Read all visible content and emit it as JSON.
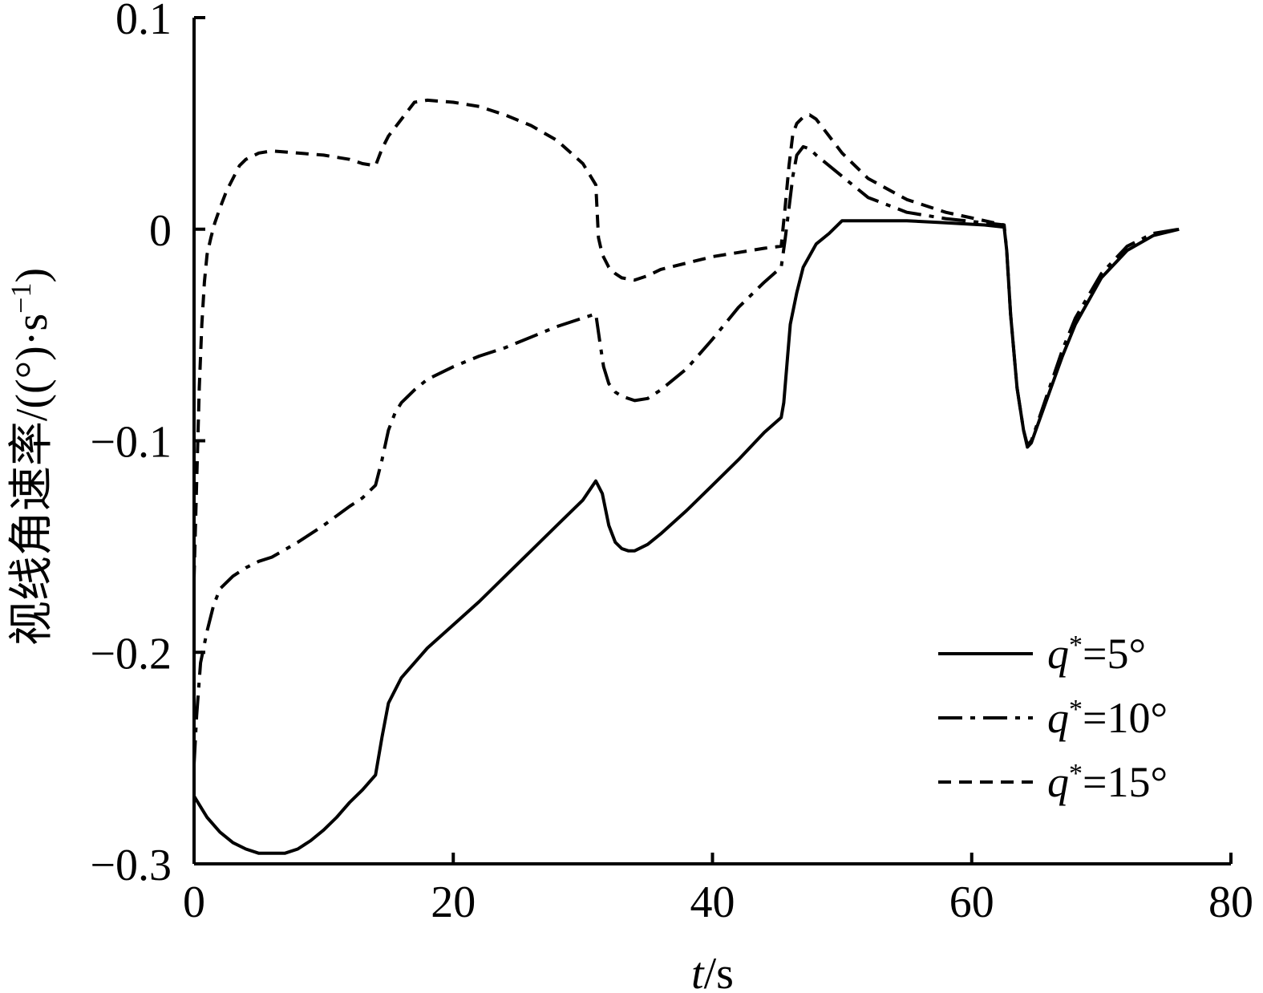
{
  "chart_data": {
    "type": "line",
    "title": "",
    "xlabel": {
      "var": "t",
      "unit": "/s"
    },
    "ylabel": {
      "text": "视线角速率/((°)·s",
      "sup": "−1",
      "close": ")"
    },
    "xlim": [
      0,
      80
    ],
    "ylim": [
      -0.3,
      0.1
    ],
    "xticks": [
      0,
      20,
      40,
      60,
      80
    ],
    "xtick_labels": [
      "0",
      "20",
      "40",
      "60",
      "80"
    ],
    "yticks": [
      -0.3,
      -0.2,
      -0.1,
      0,
      0.1
    ],
    "ytick_labels": [
      "−0.3",
      "−0.2",
      "−0.1",
      "0",
      "0.1"
    ],
    "grid": false,
    "legend_position": "bottom-right",
    "series": [
      {
        "var": "q",
        "sup": "*",
        "value": "=5°",
        "dash": "solid",
        "x": [
          0,
          0.5,
          1,
          2,
          3,
          4,
          5,
          6,
          7,
          8,
          9,
          10,
          11,
          12,
          13,
          14,
          14.5,
          15,
          15.5,
          16,
          17,
          18,
          20,
          22,
          24,
          26,
          28,
          30,
          31,
          31.5,
          32,
          32.5,
          33,
          33.5,
          34,
          35,
          36,
          38,
          40,
          42,
          44,
          45.3,
          45.5,
          45.8,
          46,
          46.5,
          47,
          48,
          49,
          50,
          52,
          55,
          58,
          61,
          62.5,
          62.7,
          63,
          63.5,
          64,
          64.3,
          64.6,
          65,
          66,
          67,
          68,
          70,
          72,
          74,
          76
        ],
        "y": [
          -0.268,
          -0.273,
          -0.278,
          -0.285,
          -0.29,
          -0.293,
          -0.295,
          -0.295,
          -0.295,
          -0.293,
          -0.289,
          -0.284,
          -0.278,
          -0.271,
          -0.265,
          -0.258,
          -0.24,
          -0.224,
          -0.218,
          -0.212,
          -0.205,
          -0.198,
          -0.187,
          -0.176,
          -0.164,
          -0.152,
          -0.14,
          -0.128,
          -0.119,
          -0.125,
          -0.14,
          -0.148,
          -0.151,
          -0.152,
          -0.152,
          -0.149,
          -0.144,
          -0.133,
          -0.121,
          -0.109,
          -0.096,
          -0.089,
          -0.082,
          -0.06,
          -0.045,
          -0.03,
          -0.018,
          -0.007,
          -0.002,
          0.004,
          0.004,
          0.004,
          0.003,
          0.002,
          0.001,
          -0.01,
          -0.04,
          -0.075,
          -0.095,
          -0.103,
          -0.101,
          -0.094,
          -0.077,
          -0.06,
          -0.045,
          -0.023,
          -0.01,
          -0.003,
          0
        ]
      },
      {
        "var": "q",
        "sup": "*",
        "value": "=10°",
        "dash": "dashdot",
        "x": [
          0,
          0.2,
          0.5,
          1,
          1.5,
          2,
          3,
          4,
          5,
          6,
          8,
          10,
          12,
          13,
          14,
          14.5,
          15,
          15.5,
          16,
          17,
          18,
          20,
          22,
          24,
          26,
          28,
          30,
          31,
          31.3,
          31.6,
          32,
          32.5,
          33,
          34,
          35,
          36,
          38,
          40,
          42,
          44,
          45.3,
          45.6,
          45.9,
          46.2,
          46.5,
          47,
          47.5,
          48,
          50,
          52,
          55,
          58,
          61,
          62.5,
          62.7,
          63,
          63.5,
          64,
          64.3,
          64.6,
          65,
          66,
          67,
          68,
          70,
          72,
          74,
          76
        ],
        "y": [
          -0.253,
          -0.23,
          -0.205,
          -0.19,
          -0.178,
          -0.17,
          -0.164,
          -0.16,
          -0.157,
          -0.155,
          -0.148,
          -0.14,
          -0.131,
          -0.127,
          -0.121,
          -0.109,
          -0.095,
          -0.087,
          -0.082,
          -0.076,
          -0.071,
          -0.065,
          -0.06,
          -0.056,
          -0.051,
          -0.046,
          -0.042,
          -0.04,
          -0.053,
          -0.065,
          -0.073,
          -0.077,
          -0.079,
          -0.081,
          -0.08,
          -0.076,
          -0.066,
          -0.052,
          -0.037,
          -0.025,
          -0.018,
          -0.005,
          0.01,
          0.025,
          0.035,
          0.039,
          0.038,
          0.035,
          0.025,
          0.015,
          0.008,
          0.005,
          0.003,
          0.002,
          -0.01,
          -0.04,
          -0.075,
          -0.095,
          -0.102,
          -0.1,
          -0.093,
          -0.075,
          -0.057,
          -0.042,
          -0.021,
          -0.008,
          -0.002,
          0
        ]
      },
      {
        "var": "q",
        "sup": "*",
        "value": "=15°",
        "dash": "dashed",
        "x": [
          0,
          0.2,
          0.4,
          0.6,
          0.8,
          1,
          1.3,
          1.6,
          2,
          2.5,
          3,
          3.5,
          4,
          5,
          6,
          8,
          10,
          12,
          13,
          14,
          14.5,
          15,
          16,
          17,
          18,
          20,
          22,
          24,
          26,
          28,
          30,
          31,
          31.2,
          31.5,
          32,
          32.5,
          33,
          34,
          35,
          36,
          38,
          40,
          42,
          44,
          45.3,
          45.6,
          45.9,
          46.2,
          46.5,
          47,
          47.5,
          48,
          50,
          52,
          55,
          58,
          61,
          62.5
        ],
        "y": [
          -0.165,
          -0.12,
          -0.075,
          -0.045,
          -0.025,
          -0.012,
          -0.004,
          0.003,
          0.01,
          0.018,
          0.024,
          0.03,
          0.033,
          0.036,
          0.037,
          0.036,
          0.035,
          0.033,
          0.031,
          0.03,
          0.038,
          0.044,
          0.052,
          0.06,
          0.061,
          0.06,
          0.058,
          0.054,
          0.049,
          0.042,
          0.031,
          0.021,
          -0.004,
          -0.012,
          -0.018,
          -0.021,
          -0.023,
          -0.024,
          -0.022,
          -0.019,
          -0.016,
          -0.013,
          -0.011,
          -0.009,
          -0.008,
          0.01,
          0.03,
          0.045,
          0.05,
          0.053,
          0.054,
          0.052,
          0.036,
          0.024,
          0.014,
          0.008,
          0.004,
          0.002
        ]
      }
    ]
  }
}
